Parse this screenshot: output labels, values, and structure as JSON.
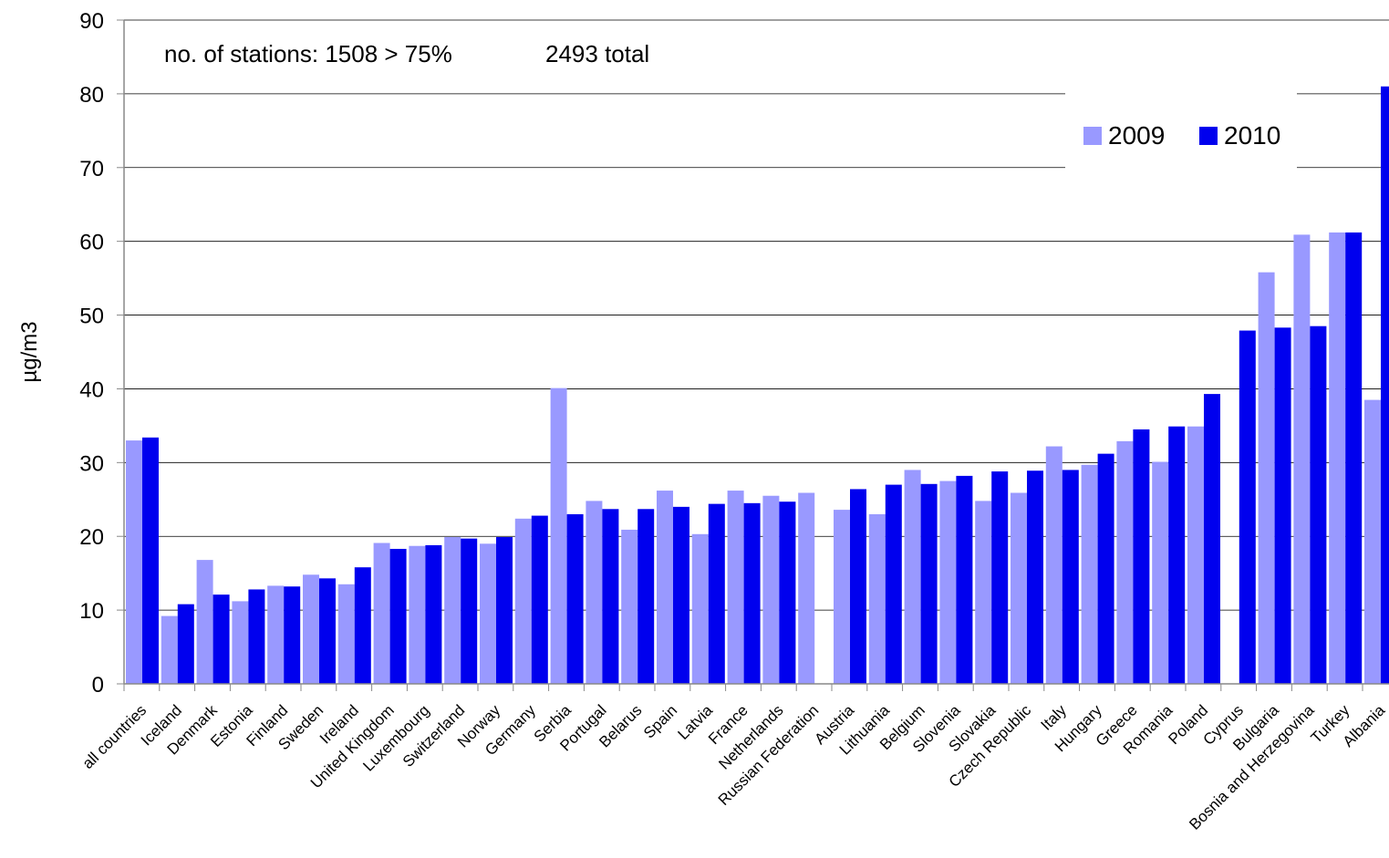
{
  "chart_data": {
    "type": "bar",
    "annotations": [
      "no. of stations: 1508 > 75%",
      "2493 total"
    ],
    "y_label": "µg/m3",
    "categories": [
      "all countries",
      "Iceland",
      "Denmark",
      "Estonia",
      "Finland",
      "Sweden",
      "Ireland",
      "United Kingdom",
      "Luxembourg",
      "Switzerland",
      "Norway",
      "Germany",
      "Serbia",
      "Portugal",
      "Belarus",
      "Spain",
      "Latvia",
      "France",
      "Netherlands",
      "Russian Federation",
      "Austria",
      "Lithuania",
      "Belgium",
      "Slovenia",
      "Slovakia",
      "Czech Republic",
      "Italy",
      "Hungary",
      "Greece",
      "Romania",
      "Poland",
      "Cyprus",
      "Bulgaria",
      "Bosnia and Herzegovina",
      "Turkey",
      "Albania"
    ],
    "series": [
      {
        "name": "2009",
        "color": "#9999ff",
        "values": [
          33.0,
          9.2,
          16.8,
          11.2,
          13.3,
          14.8,
          13.5,
          19.1,
          18.7,
          19.9,
          19.0,
          22.4,
          40.1,
          24.8,
          20.9,
          26.2,
          20.3,
          26.2,
          25.5,
          25.9,
          23.6,
          23.0,
          29.0,
          27.5,
          24.8,
          25.9,
          32.2,
          29.7,
          32.9,
          30.1,
          34.9,
          null,
          55.8,
          60.9,
          61.2,
          38.5
        ]
      },
      {
        "name": "2010",
        "color": "#0000ee",
        "values": [
          33.4,
          10.8,
          12.1,
          12.8,
          13.2,
          14.3,
          15.8,
          18.3,
          18.8,
          19.7,
          19.9,
          22.8,
          23.0,
          23.7,
          23.7,
          24.0,
          24.4,
          24.5,
          24.7,
          null,
          26.4,
          27.0,
          27.1,
          28.2,
          28.8,
          28.9,
          29.0,
          31.2,
          34.5,
          34.9,
          39.3,
          47.9,
          48.3,
          48.5,
          61.2,
          81.0
        ]
      }
    ],
    "ylim": [
      0,
      90
    ],
    "yticks": [
      0,
      10,
      20,
      30,
      40,
      50,
      60,
      70,
      80,
      90
    ],
    "grid": true,
    "legend": "top-right"
  }
}
